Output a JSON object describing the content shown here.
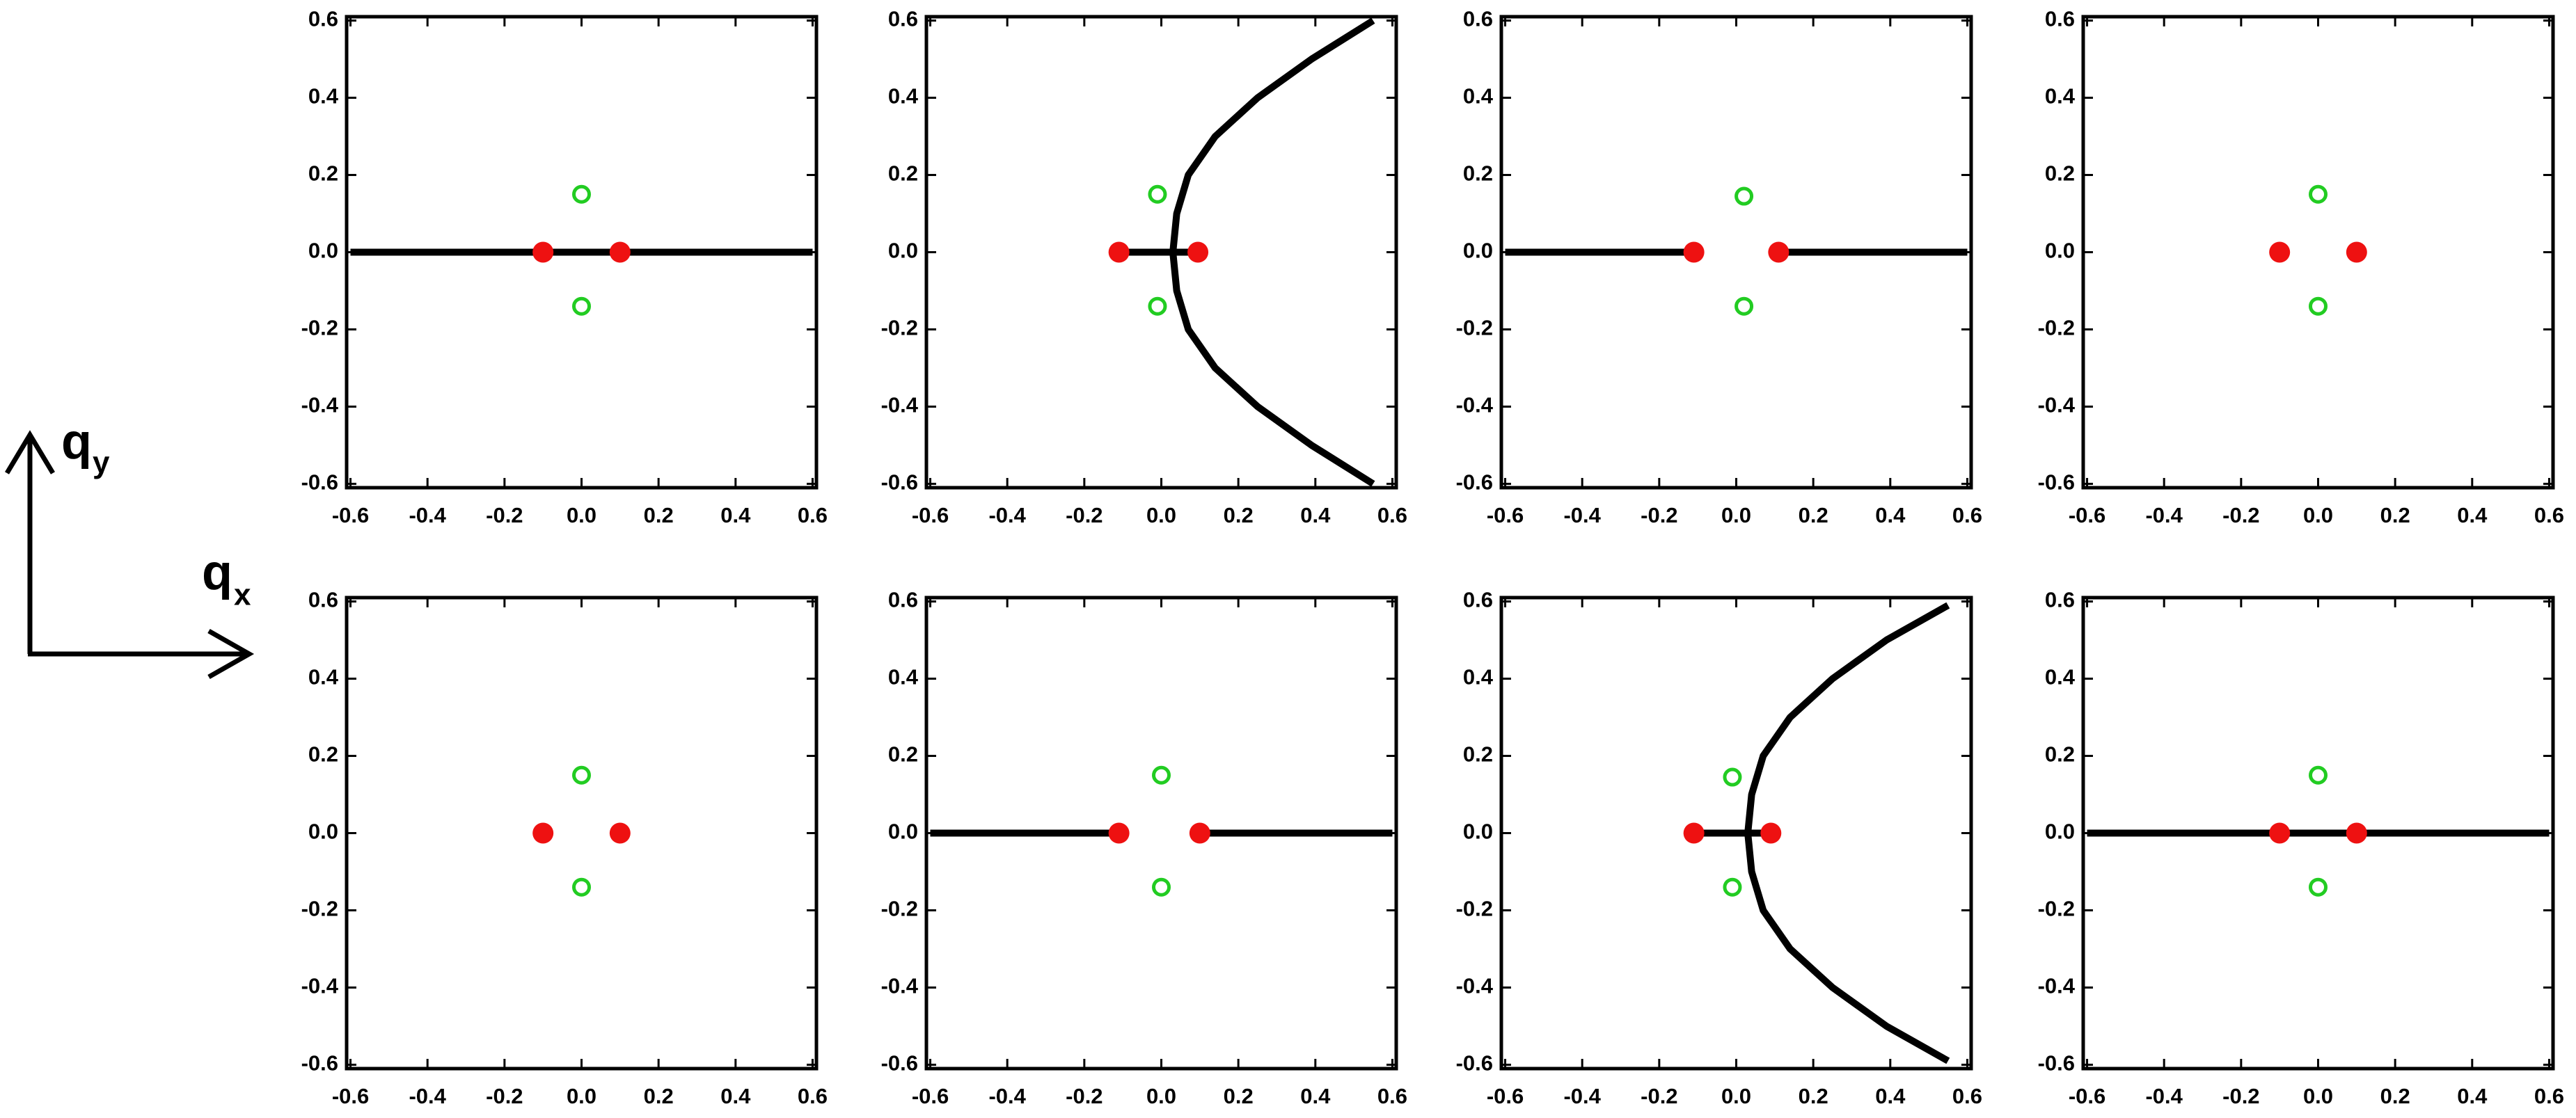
{
  "axes_indicator": {
    "x_label": "q",
    "x_subscript": "x",
    "y_label": "q",
    "y_subscript": "y"
  },
  "chart_data": [
    {
      "type": "scatter",
      "xlim": [
        -0.61,
        0.61
      ],
      "ylim": [
        -0.61,
        0.61
      ],
      "xticks": [
        -0.6,
        -0.4,
        -0.2,
        {
          "value": 0,
          "label": "0.0"
        },
        0.2,
        0.4,
        0.6
      ],
      "yticks": [
        -0.6,
        -0.4,
        -0.2,
        {
          "value": 0,
          "label": "0.0"
        },
        0.2,
        0.4,
        0.6
      ],
      "series": [
        {
          "color": "#000000",
          "mode": "line",
          "x": [
            -0.6,
            0.6
          ],
          "y": [
            0,
            0
          ]
        },
        {
          "color": "#ee1111",
          "mode": "filled",
          "x": [
            -0.1,
            0.1
          ],
          "y": [
            0,
            0
          ]
        },
        {
          "color": "#22cc22",
          "mode": "open",
          "x": [
            0,
            0
          ],
          "y": [
            0.15,
            -0.14
          ]
        }
      ]
    },
    {
      "type": "scatter",
      "xlim": [
        -0.61,
        0.61
      ],
      "ylim": [
        -0.61,
        0.61
      ],
      "xticks": [
        -0.6,
        -0.4,
        -0.2,
        {
          "value": 0,
          "label": "0.0"
        },
        0.2,
        0.4,
        0.6
      ],
      "yticks": [
        -0.6,
        -0.4,
        -0.2,
        {
          "value": 0,
          "label": "0.0"
        },
        0.2,
        0.4,
        0.6
      ],
      "series": [
        {
          "color": "#000000",
          "mode": "line",
          "x": [
            0.55,
            0.39,
            0.25,
            0.14,
            0.07,
            0.04,
            0.03,
            0.04,
            0.07,
            0.14,
            0.25,
            0.39,
            0.55
          ],
          "y": [
            0.6,
            0.5,
            0.4,
            0.3,
            0.2,
            0.1,
            0,
            -0.1,
            -0.2,
            -0.3,
            -0.4,
            -0.5,
            -0.6
          ]
        },
        {
          "color": "#000000",
          "mode": "line",
          "x": [
            -0.11,
            0.095
          ],
          "y": [
            0,
            0
          ]
        },
        {
          "color": "#ee1111",
          "mode": "filled",
          "x": [
            -0.11,
            0.095
          ],
          "y": [
            0,
            0
          ]
        },
        {
          "color": "#22cc22",
          "mode": "open",
          "x": [
            -0.01,
            -0.01
          ],
          "y": [
            0.15,
            -0.14
          ]
        }
      ]
    },
    {
      "type": "scatter",
      "xlim": [
        -0.61,
        0.61
      ],
      "ylim": [
        -0.61,
        0.61
      ],
      "xticks": [
        -0.6,
        -0.4,
        -0.2,
        {
          "value": 0,
          "label": "0.0"
        },
        0.2,
        0.4,
        0.6
      ],
      "yticks": [
        -0.6,
        -0.4,
        -0.2,
        {
          "value": 0,
          "label": "0.0"
        },
        0.2,
        0.4,
        0.6
      ],
      "series": [
        {
          "color": "#000000",
          "mode": "line",
          "x": [
            -0.6,
            -0.11,
            null,
            0.11,
            0.6
          ],
          "y": [
            0,
            0,
            null,
            0,
            0
          ]
        },
        {
          "color": "#ee1111",
          "mode": "filled",
          "x": [
            -0.11,
            0.11
          ],
          "y": [
            0,
            0
          ]
        },
        {
          "color": "#22cc22",
          "mode": "open",
          "x": [
            0.02,
            0.02
          ],
          "y": [
            0.145,
            -0.14
          ]
        }
      ]
    },
    {
      "type": "scatter",
      "xlim": [
        -0.61,
        0.61
      ],
      "ylim": [
        -0.61,
        0.61
      ],
      "xticks": [
        -0.6,
        -0.4,
        -0.2,
        {
          "value": 0,
          "label": "0.0"
        },
        0.2,
        0.4,
        0.6
      ],
      "yticks": [
        -0.6,
        -0.4,
        -0.2,
        {
          "value": 0,
          "label": "0.0"
        },
        0.2,
        0.4,
        0.6
      ],
      "series": [
        {
          "color": "#ee1111",
          "mode": "filled",
          "x": [
            -0.1,
            0.1
          ],
          "y": [
            0,
            0
          ]
        },
        {
          "color": "#22cc22",
          "mode": "open",
          "x": [
            0,
            0
          ],
          "y": [
            0.15,
            -0.14
          ]
        }
      ]
    },
    {
      "type": "scatter",
      "xlim": [
        -0.61,
        0.61
      ],
      "ylim": [
        -0.61,
        0.61
      ],
      "xticks": [
        -0.6,
        -0.4,
        -0.2,
        {
          "value": 0,
          "label": "0.0"
        },
        0.2,
        0.4,
        0.6
      ],
      "yticks": [
        -0.6,
        -0.4,
        -0.2,
        {
          "value": 0,
          "label": "0.0"
        },
        0.2,
        0.4,
        0.6
      ],
      "series": [
        {
          "color": "#ee1111",
          "mode": "filled",
          "x": [
            -0.1,
            0.1
          ],
          "y": [
            0,
            0
          ]
        },
        {
          "color": "#22cc22",
          "mode": "open",
          "x": [
            0,
            0
          ],
          "y": [
            0.15,
            -0.14
          ]
        }
      ]
    },
    {
      "type": "scatter",
      "xlim": [
        -0.61,
        0.61
      ],
      "ylim": [
        -0.61,
        0.61
      ],
      "xticks": [
        -0.6,
        -0.4,
        -0.2,
        {
          "value": 0,
          "label": "0.0"
        },
        0.2,
        0.4,
        0.6
      ],
      "yticks": [
        -0.6,
        -0.4,
        -0.2,
        {
          "value": 0,
          "label": "0.0"
        },
        0.2,
        0.4,
        0.6
      ],
      "series": [
        {
          "color": "#000000",
          "mode": "line",
          "x": [
            -0.6,
            -0.11,
            null,
            0.1,
            0.6
          ],
          "y": [
            0,
            0,
            null,
            0,
            0
          ]
        },
        {
          "color": "#ee1111",
          "mode": "filled",
          "x": [
            -0.11,
            0.1
          ],
          "y": [
            0,
            0
          ]
        },
        {
          "color": "#22cc22",
          "mode": "open",
          "x": [
            0,
            0
          ],
          "y": [
            0.15,
            -0.14
          ]
        }
      ]
    },
    {
      "type": "scatter",
      "xlim": [
        -0.61,
        0.61
      ],
      "ylim": [
        -0.61,
        0.61
      ],
      "xticks": [
        -0.6,
        -0.4,
        -0.2,
        {
          "value": 0,
          "label": "0.0"
        },
        0.2,
        0.4,
        0.6
      ],
      "yticks": [
        -0.6,
        -0.4,
        -0.2,
        {
          "value": 0,
          "label": "0.0"
        },
        0.2,
        0.4,
        0.6
      ],
      "series": [
        {
          "color": "#000000",
          "mode": "line",
          "x": [
            0.55,
            0.39,
            0.25,
            0.14,
            0.07,
            0.04,
            0.03,
            0.04,
            0.07,
            0.14,
            0.25,
            0.39,
            0.55
          ],
          "y": [
            0.59,
            0.5,
            0.4,
            0.3,
            0.2,
            0.1,
            0,
            -0.1,
            -0.2,
            -0.3,
            -0.4,
            -0.5,
            -0.59
          ]
        },
        {
          "color": "#000000",
          "mode": "line",
          "x": [
            -0.11,
            0.09
          ],
          "y": [
            0,
            0
          ]
        },
        {
          "color": "#ee1111",
          "mode": "filled",
          "x": [
            -0.11,
            0.09
          ],
          "y": [
            0,
            0
          ]
        },
        {
          "color": "#22cc22",
          "mode": "open",
          "x": [
            -0.01,
            -0.01
          ],
          "y": [
            0.145,
            -0.14
          ]
        }
      ]
    },
    {
      "type": "scatter",
      "xlim": [
        -0.61,
        0.61
      ],
      "ylim": [
        -0.61,
        0.61
      ],
      "xticks": [
        -0.6,
        -0.4,
        -0.2,
        {
          "value": 0,
          "label": "0.0"
        },
        0.2,
        0.4,
        0.6
      ],
      "yticks": [
        -0.6,
        -0.4,
        -0.2,
        {
          "value": 0,
          "label": "0.0"
        },
        0.2,
        0.4,
        0.6
      ],
      "series": [
        {
          "color": "#000000",
          "mode": "line",
          "x": [
            -0.6,
            0.6
          ],
          "y": [
            0,
            0
          ]
        },
        {
          "color": "#ee1111",
          "mode": "filled",
          "x": [
            -0.1,
            0.1
          ],
          "y": [
            0,
            0
          ]
        },
        {
          "color": "#22cc22",
          "mode": "open",
          "x": [
            0,
            0
          ],
          "y": [
            0.15,
            -0.14
          ]
        }
      ]
    }
  ]
}
